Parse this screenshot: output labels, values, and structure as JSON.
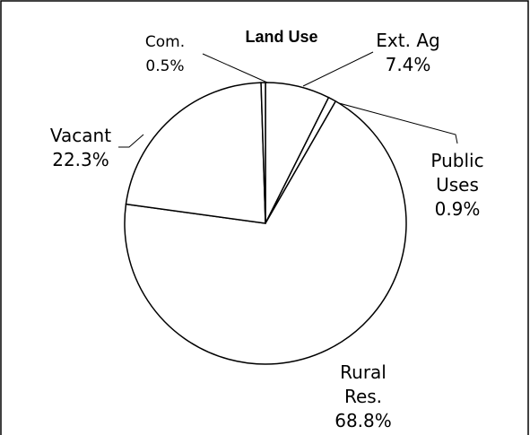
{
  "chart_data": {
    "type": "pie",
    "title": "Land Use",
    "categories": [
      "Ext. Ag",
      "Public Uses",
      "Rural Res.",
      "Vacant",
      "Com."
    ],
    "values": [
      7.4,
      0.9,
      68.8,
      22.3,
      0.5
    ],
    "value_labels": [
      "7.4%",
      "0.9%",
      "68.8%",
      "22.3%",
      "0.5%"
    ],
    "color": "#ffffff"
  }
}
